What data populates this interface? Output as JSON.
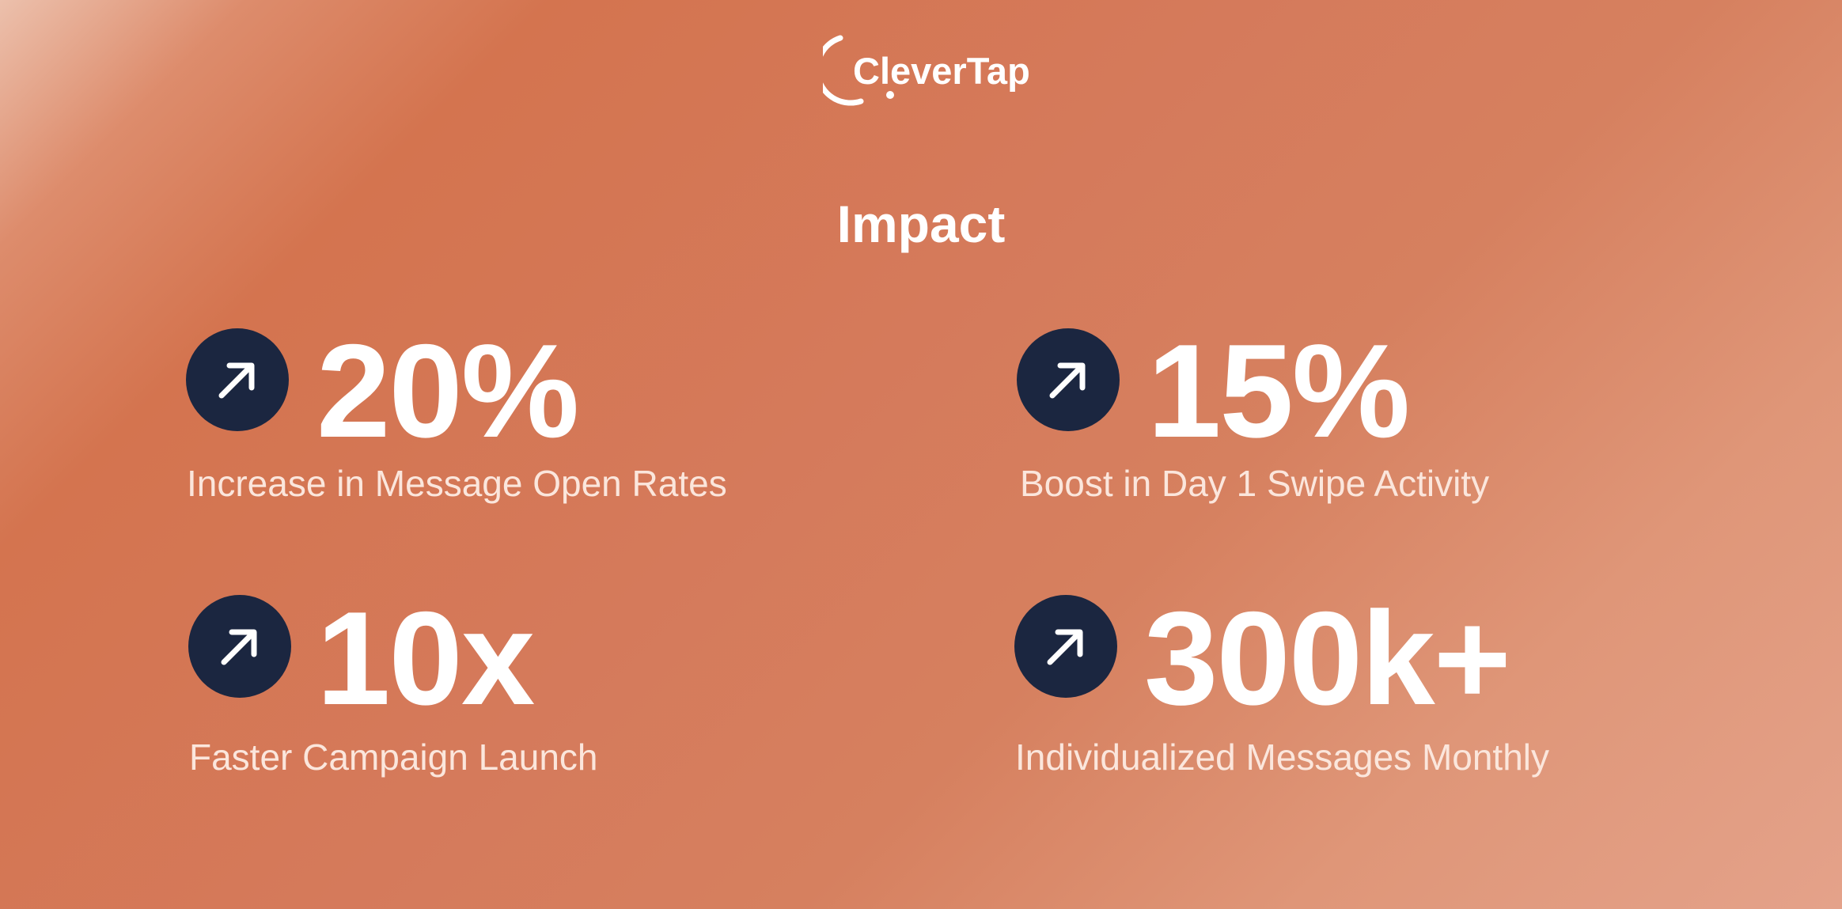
{
  "brand": {
    "logo_text": "CleverTap"
  },
  "title": "Impact",
  "colors": {
    "icon_circle": "#1b2640",
    "text": "#ffffff",
    "background": "#d4774f"
  },
  "stats": [
    {
      "value": "20%",
      "label": "Increase in Message Open Rates",
      "icon": "arrow-up-right-icon"
    },
    {
      "value": "15%",
      "label": "Boost in Day 1 Swipe Activity",
      "icon": "arrow-up-right-icon"
    },
    {
      "value": "10x",
      "label": "Faster Campaign Launch",
      "icon": "arrow-up-right-icon"
    },
    {
      "value": "300k+",
      "label": "Individualized Messages Monthly",
      "icon": "arrow-up-right-icon"
    }
  ]
}
